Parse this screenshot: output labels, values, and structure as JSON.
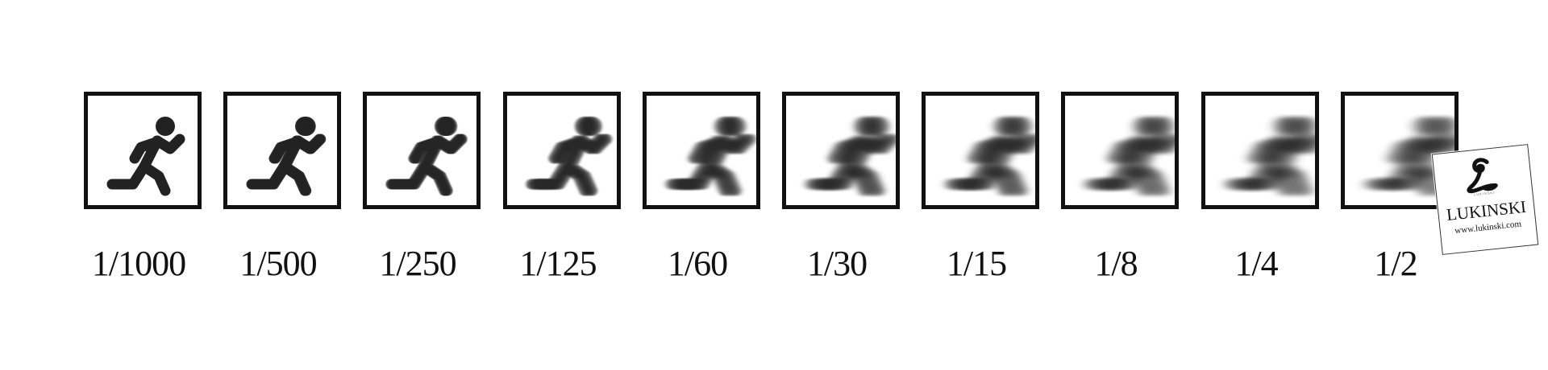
{
  "diagram": {
    "ink_color": "#222222",
    "frame_color": "#111111",
    "icon": "running-person-icon",
    "steps": [
      {
        "label": "1/1000",
        "blur": 0
      },
      {
        "label": "1/500",
        "blur": 0.05
      },
      {
        "label": "1/250",
        "blur": 0.12
      },
      {
        "label": "1/125",
        "blur": 0.28
      },
      {
        "label": "1/60",
        "blur": 0.45
      },
      {
        "label": "1/30",
        "blur": 0.6
      },
      {
        "label": "1/15",
        "blur": 0.72
      },
      {
        "label": "1/8",
        "blur": 0.82
      },
      {
        "label": "1/4",
        "blur": 0.92
      },
      {
        "label": "1/2",
        "blur": 1.0
      }
    ]
  },
  "watermark": {
    "monogram": "L",
    "tagline": "LUKINSKI",
    "name": "LUKINSKI",
    "url": "www.lukinski.com"
  }
}
